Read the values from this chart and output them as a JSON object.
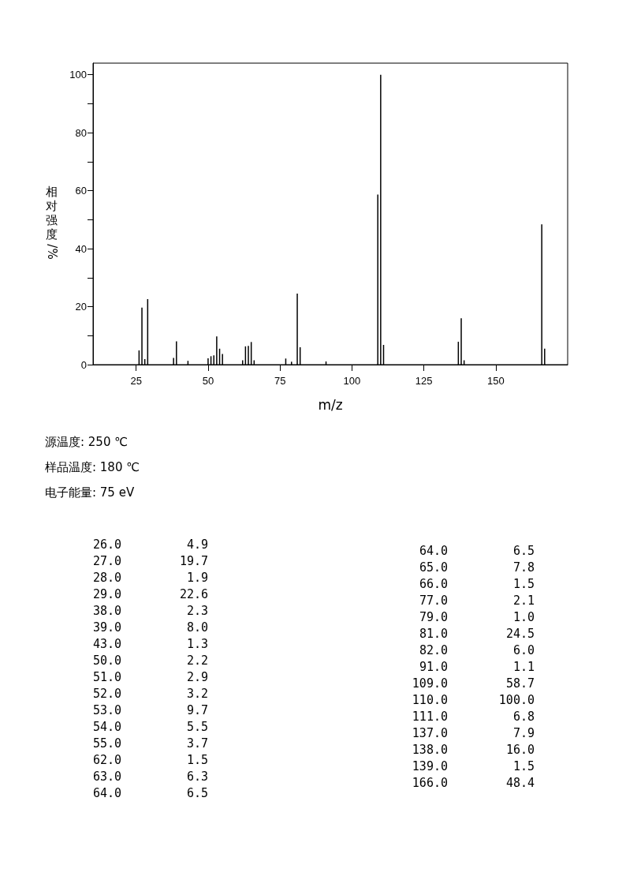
{
  "chart_data": {
    "type": "bar",
    "xlabel": "m/z",
    "ylabel": "相对强度/%",
    "x": [
      26,
      27,
      28,
      29,
      38,
      39,
      43,
      50,
      51,
      52,
      53,
      54,
      55,
      62,
      63,
      64,
      65,
      66,
      77,
      79,
      81,
      82,
      91,
      109,
      110,
      111,
      137,
      138,
      139,
      166,
      167
    ],
    "values": [
      4.9,
      19.7,
      1.9,
      22.6,
      2.3,
      8.0,
      1.3,
      2.2,
      2.9,
      3.2,
      9.7,
      5.5,
      3.7,
      1.5,
      6.3,
      6.5,
      7.8,
      1.5,
      2.1,
      1.0,
      24.5,
      6.0,
      1.1,
      58.7,
      100.0,
      6.8,
      7.9,
      16.0,
      1.5,
      48.4,
      5.5
    ],
    "color": "#000000",
    "xlim": [
      10,
      175
    ],
    "xticks": [
      25,
      50,
      75,
      100,
      125,
      150
    ],
    "ylim": [
      0,
      104
    ],
    "yticks": [
      0,
      {
        "value": 10,
        "label": null
      },
      20,
      {
        "value": 30,
        "label": null
      },
      40,
      {
        "value": 50,
        "label": null
      },
      60,
      {
        "value": 70,
        "label": null
      },
      80,
      {
        "value": 90,
        "label": null
      },
      100
    ],
    "grid": false,
    "annotations": [
      "源温度: 250 ℃",
      "样品温度: 180 ℃",
      "电子能量: 75 eV",
      "26.0",
      "4.9",
      "27.0",
      "19.7",
      "28.0",
      "1.9",
      "29.0",
      "22.6",
      "38.0",
      "2.3",
      "39.0",
      "8.0",
      "43.0",
      "1.3",
      "50.0",
      "2.2",
      "51.0",
      "2.9",
      "52.0",
      "3.2",
      "53.0",
      "9.7",
      "54.0",
      "5.5",
      "55.0",
      "3.7",
      "62.0",
      "1.5",
      "63.0",
      "6.3",
      "64.0",
      "6.5",
      "64.0",
      "6.5",
      "65.0",
      "7.8",
      "66.0",
      "1.5",
      "77.0",
      "2.1",
      "79.0",
      "1.0",
      "81.0",
      "24.5",
      "82.0",
      "6.0",
      "91.0",
      "1.1",
      "109.0",
      "58.7",
      "110.0",
      "100.0",
      "111.0",
      "6.8",
      "137.0",
      "7.9",
      "138.0",
      "16.0",
      "139.0",
      "1.5",
      "166.0",
      "48.4"
    ]
  }
}
